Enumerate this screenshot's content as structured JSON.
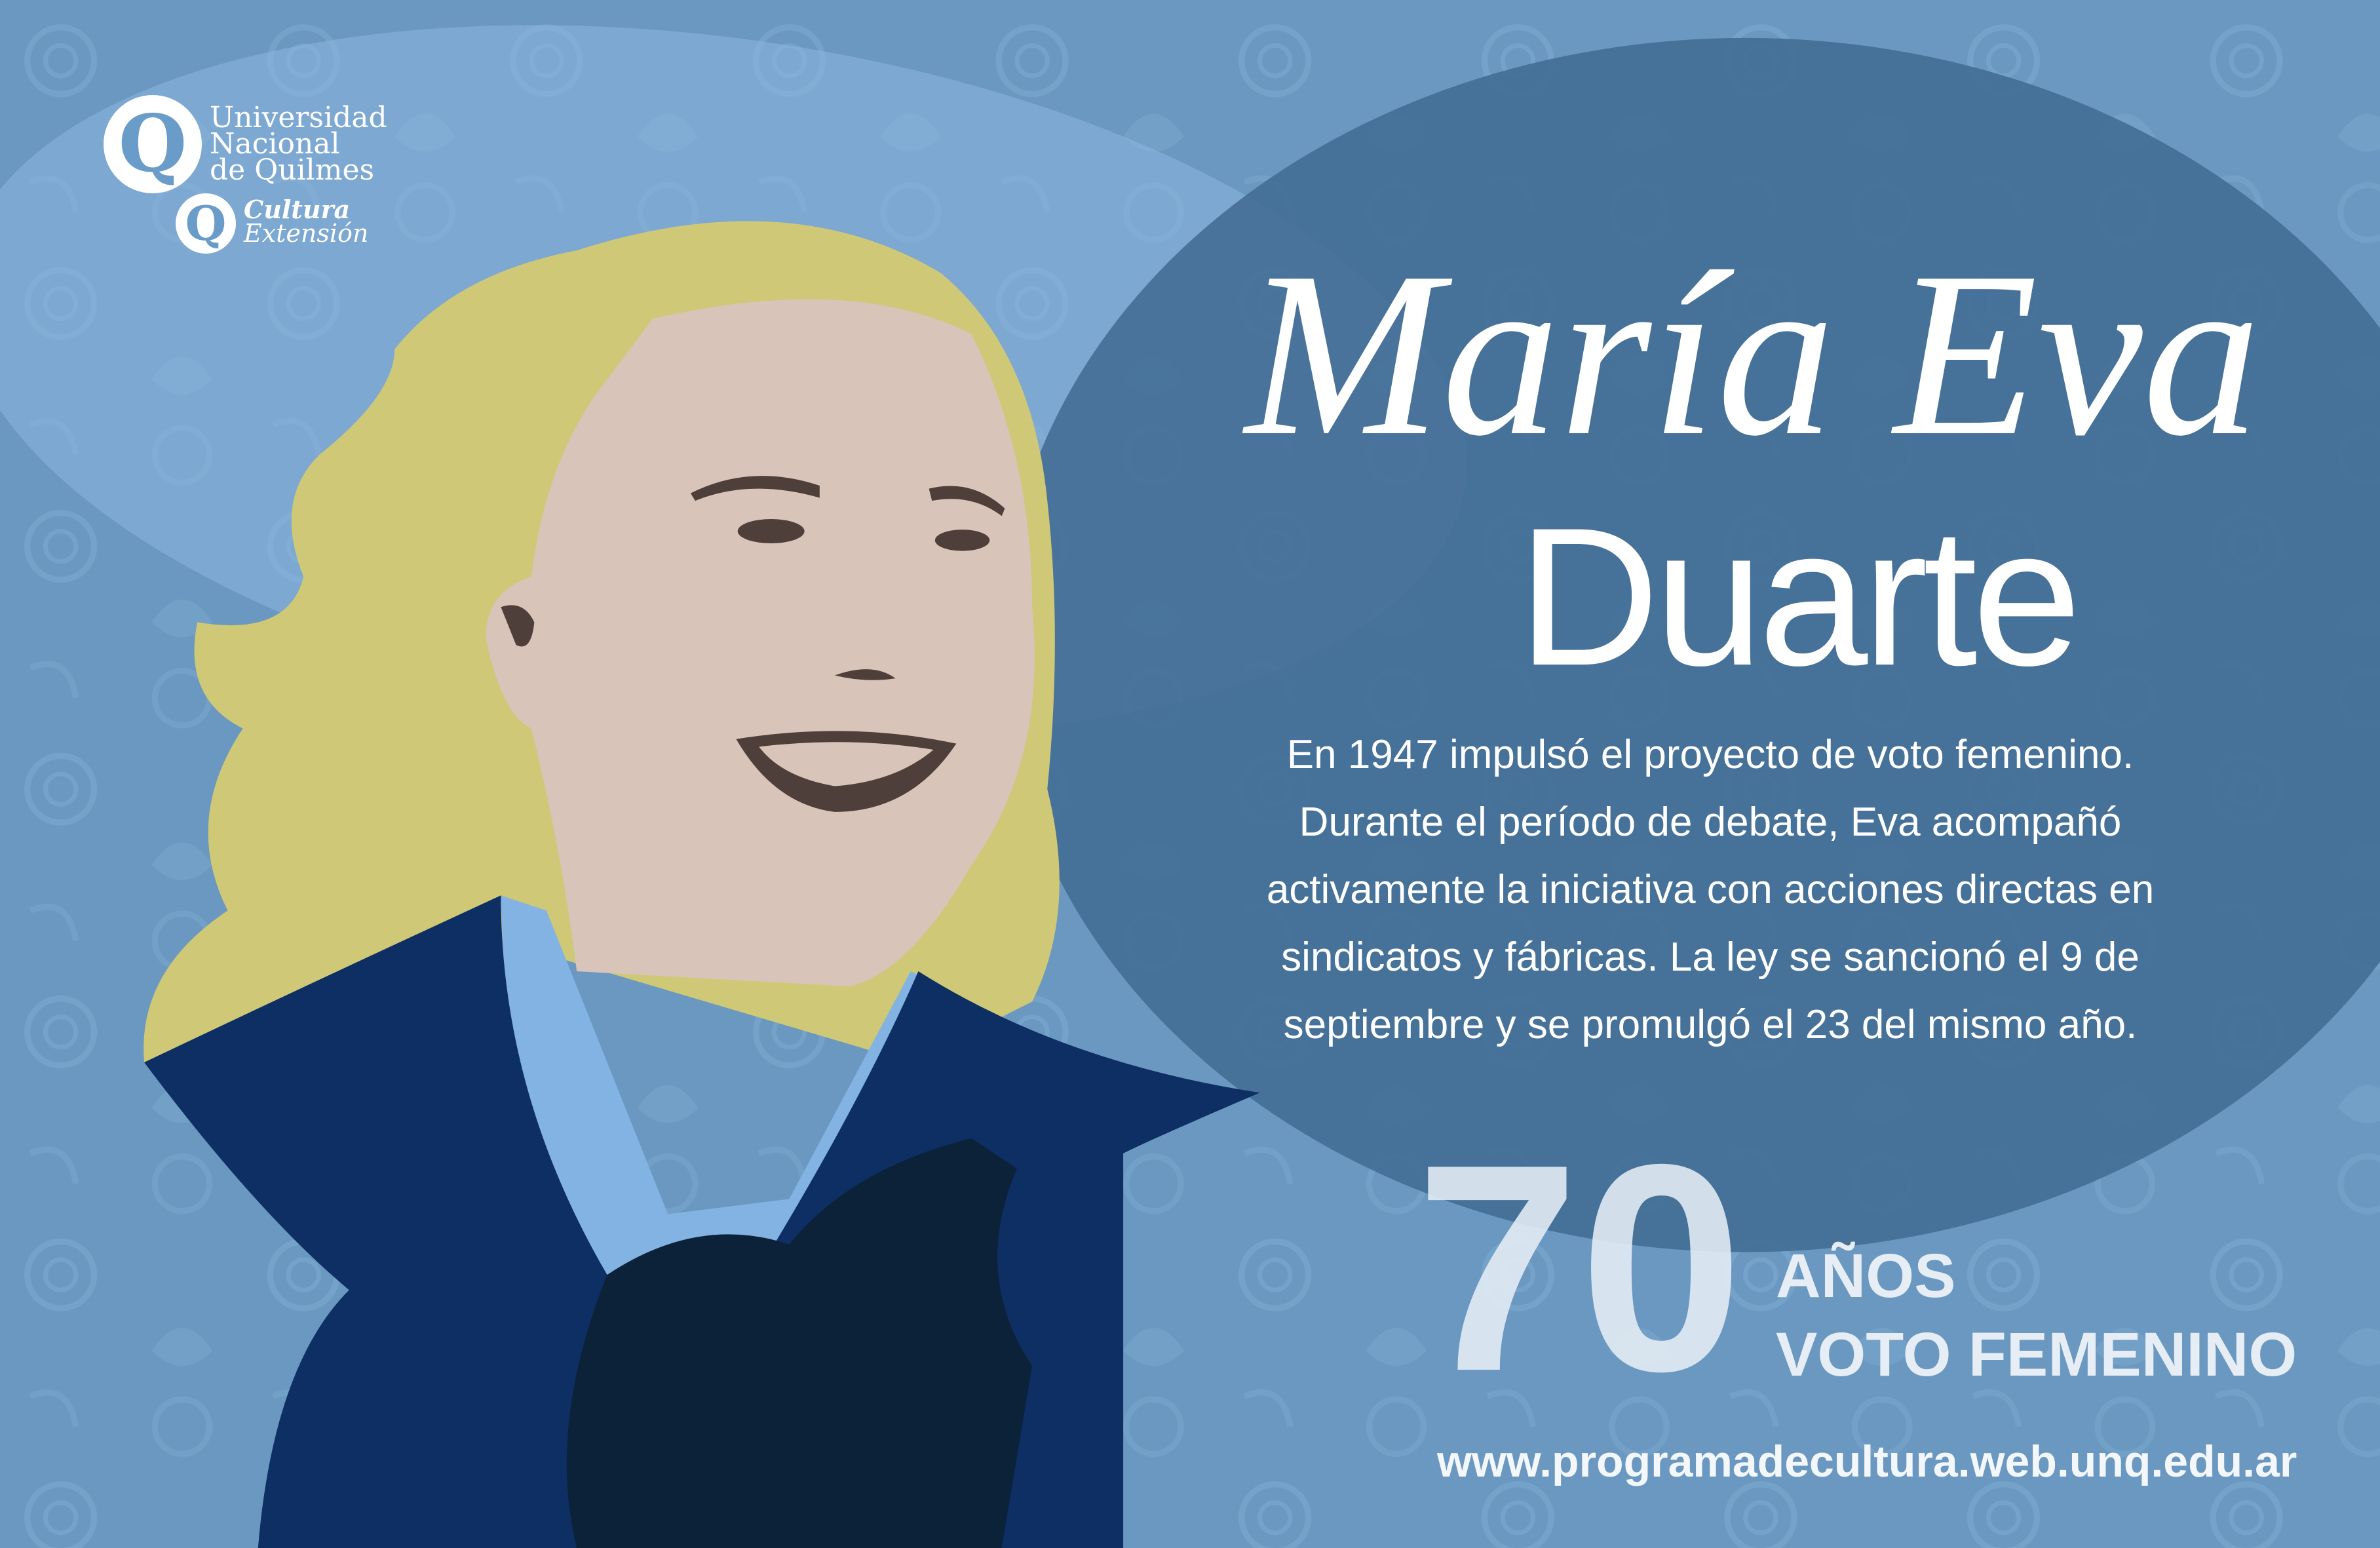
{
  "logo": {
    "university_lines": [
      "Universidad",
      "Nacional",
      "de Quilmes"
    ],
    "sub_lines": [
      "Cultura",
      "Extensión"
    ]
  },
  "title": {
    "first_names": "María Eva",
    "surname": "Duarte"
  },
  "body_lines": [
    "En 1947 impulsó el proyecto de voto femenino.",
    "Durante el período de debate, Eva acompañó",
    "activamente la iniciativa con acciones directas en",
    "sindicatos y fábricas. La ley se sancionó el 9 de",
    "septiembre y se promulgó el 23 del mismo año."
  ],
  "anniversary": {
    "number": "70",
    "line1": "AÑOS",
    "line2": "VOTO FEMENINO"
  },
  "url": "www.programadecultura.web.unq.edu.ar",
  "colors": {
    "background": "#6a98c0",
    "dark_ellipse": "#3f6a91",
    "hair": "#cfc877",
    "skin": "#d9c4b9",
    "collar": "#82b3e2",
    "jacket": "#0e2f64",
    "shirt": "#0b2239"
  }
}
